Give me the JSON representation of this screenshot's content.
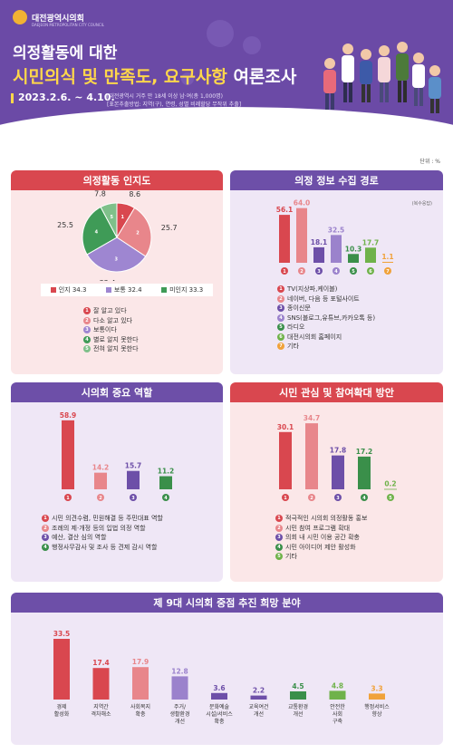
{
  "header": {
    "org_name": "대전광역시의회",
    "org_sub": "DAEJEON METROPOLITAN CITY COUNCIL",
    "title_line1": "의정활동에 대한",
    "title_line2_highlight": "시민의식 및 만족도, 요구사항",
    "title_line2_rest": " 여론조사",
    "date": "2023.2.6. ~ 4.10.",
    "note1": "[대전광역시 거주 만 18세 이상 남·여(총 1,000명)",
    "note2": "[표본추출방법: 지역(구), 연령, 성별 비례할당 무작위 추출]"
  },
  "unit": "단위 : %",
  "colors": {
    "red": "#d9474f",
    "pink": "#e8868b",
    "purple": "#6d4fa8",
    "lavender": "#9b82cc",
    "green": "#3a8f4a",
    "lime": "#6fb24a",
    "orange": "#f0a23a",
    "pie_purple": "#9e86d1",
    "pie_green": "#3f9b57",
    "pie_light_green": "#7fc08a"
  },
  "chart_data": [
    {
      "type": "pie",
      "title": "의정활동 인지도",
      "slices": [
        {
          "label": "잘 알고 있다",
          "num": "1",
          "value": 8.6,
          "color": "#d9474f"
        },
        {
          "label": "다소 알고 있다",
          "num": "2",
          "value": 25.7,
          "color": "#e8868b"
        },
        {
          "label": "보통이다",
          "num": "3",
          "value": 32.4,
          "color": "#9e86d1"
        },
        {
          "label": "별로 알지 못한다",
          "num": "4",
          "value": 25.5,
          "color": "#3f9b57"
        },
        {
          "label": "전혀 알지 못한다",
          "num": "5",
          "value": 7.8,
          "color": "#7fc08a"
        }
      ],
      "summary": [
        {
          "label": "인지 34.3",
          "color": "#d9474f"
        },
        {
          "label": "보통 32.4",
          "color": "#9e86d1"
        },
        {
          "label": "미인지 33.3",
          "color": "#3f9b57"
        }
      ]
    },
    {
      "type": "bar",
      "title": "의정 정보 수집 경로",
      "note": "(복수응답)",
      "categories": [
        "1",
        "2",
        "3",
        "4",
        "5",
        "6",
        "7"
      ],
      "values": [
        56.1,
        64.0,
        18.1,
        32.5,
        10.3,
        17.7,
        1.1
      ],
      "colors": [
        "#d9474f",
        "#e8868b",
        "#6d4fa8",
        "#9b82cc",
        "#3a8f4a",
        "#6fb24a",
        "#f0a23a"
      ],
      "labels": [
        "TV(지상파,케이블)",
        "네이버, 다음 등 포털사이트",
        "종이신문",
        "SNS(블로그,유튜브,카카오톡 등)",
        "라디오",
        "대전시의회 홈페이지",
        "기타"
      ],
      "ylim": [
        0,
        70
      ]
    },
    {
      "type": "bar",
      "title": "시의회 중요 역할",
      "categories": [
        "1",
        "2",
        "3",
        "4"
      ],
      "values": [
        58.9,
        14.2,
        15.7,
        11.2
      ],
      "colors": [
        "#d9474f",
        "#e8868b",
        "#6d4fa8",
        "#3a8f4a"
      ],
      "labels": [
        "시민 의견수렴, 민원해결 등 주민대표 역할",
        "조례의 제·개정 등의 입법 의정 역할",
        "예산, 결산 심의 역할",
        "행정사무감사 및 조사 등 견제 감시 역할"
      ],
      "ylim": [
        0,
        65
      ]
    },
    {
      "type": "bar",
      "title": "시민 관심 및 참여확대 방안",
      "categories": [
        "1",
        "2",
        "3",
        "4",
        "5"
      ],
      "values": [
        30.1,
        34.7,
        17.8,
        17.2,
        0.2
      ],
      "colors": [
        "#d9474f",
        "#e8868b",
        "#6d4fa8",
        "#3a8f4a",
        "#6fb24a"
      ],
      "labels": [
        "적극적인 시의회 의정활동 홍보",
        "시민 참여 프로그램 확대",
        "의회 내 시민 이용 공간 확충",
        "시민 아이디어 제안 활성화",
        "기타"
      ],
      "ylim": [
        0,
        40
      ]
    },
    {
      "type": "bar",
      "title": "제 9대 시의회 중점 추진 희망 분야",
      "categories": [
        "경제 활성화",
        "지역간 격차해소",
        "사회복지 확충",
        "주거/ 생활환경 개선",
        "문화예술 시설/서비스 확충",
        "교육여건 개선",
        "교통환경 개선",
        "안전한 사회 구축",
        "행정서비스 향상"
      ],
      "values": [
        33.5,
        17.4,
        17.9,
        12.8,
        3.6,
        2.2,
        4.5,
        4.8,
        3.3
      ],
      "colors": [
        "#d9474f",
        "#d9474f",
        "#e8868b",
        "#9b82cc",
        "#6d4fa8",
        "#6d4fa8",
        "#3a8f4a",
        "#6fb24a",
        "#f0a23a"
      ],
      "ylim": [
        0,
        38
      ]
    }
  ]
}
